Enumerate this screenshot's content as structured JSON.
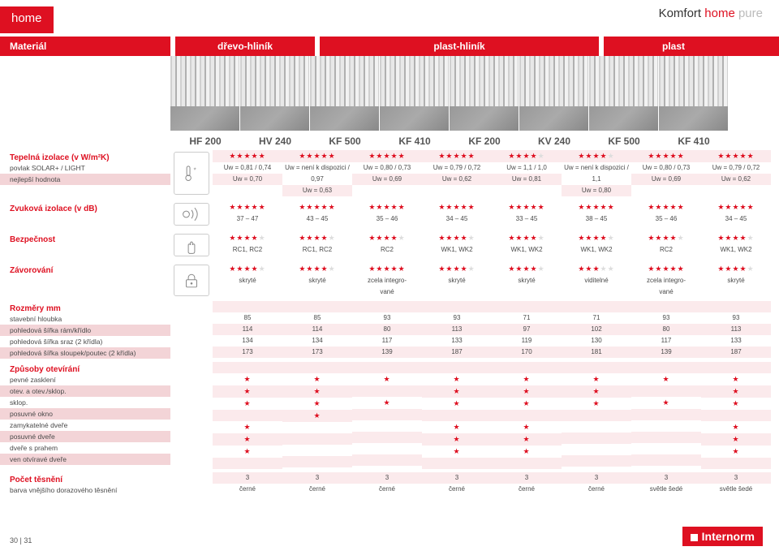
{
  "colors": {
    "brand_red": "#de1021",
    "grey": "#888888",
    "star_off": "#dddddd"
  },
  "header": {
    "tab": "home",
    "brand_prefix": "Komfort ",
    "brand_mid": "home ",
    "brand_suffix": "pure"
  },
  "material_row": {
    "label": "Materiál",
    "groups": [
      "dřevo-hliník",
      "plast-hliník",
      "plast"
    ]
  },
  "models": [
    "HF 200",
    "HV 240",
    "KF 500",
    "KF 410",
    "KF 200",
    "KV 240",
    "KF 500",
    "KF 410"
  ],
  "thermal": {
    "title": "Tepelná izolace (v W/m²K)",
    "rows": [
      {
        "label": "povlak SOLAR+ / LIGHT",
        "vals": [
          "Uw = 0,81 / 0,74",
          "Uw = není k dispozici / 0,97",
          "Uw = 0,80 / 0,73",
          "Uw = 0,79 / 0,72",
          "Uw = 1,1 / 1,0",
          "Uw = není k dispozici / 1,1",
          "Uw = 0,80 / 0,73",
          "Uw = 0,79 / 0,72"
        ]
      },
      {
        "label": "nejlepší hodnota",
        "vals": [
          "Uw = 0,70",
          "Uw = 0,63",
          "Uw = 0,69",
          "Uw = 0,62",
          "Uw = 0,81",
          "Uw = 0,80",
          "Uw = 0,69",
          "Uw = 0,62"
        ]
      }
    ],
    "stars": [
      5,
      5,
      5,
      5,
      4,
      4,
      5,
      5
    ],
    "icon": "thermometer"
  },
  "sound": {
    "title": "Zvuková izolace (v dB)",
    "stars": [
      5,
      5,
      5,
      5,
      5,
      5,
      5,
      5
    ],
    "vals": [
      "37 – 47",
      "43 – 45",
      "35 – 46",
      "34 – 45",
      "33 – 45",
      "38 – 45",
      "35 – 46",
      "34 – 45"
    ],
    "icon": "sound"
  },
  "security": {
    "title": "Bezpečnost",
    "stars": [
      4,
      4,
      4,
      4,
      4,
      4,
      4,
      4
    ],
    "vals": [
      "RC1, RC2",
      "RC1, RC2",
      "RC2",
      "WK1, WK2",
      "WK1, WK2",
      "WK1, WK2",
      "RC2",
      "WK1, WK2"
    ],
    "icon": "hand"
  },
  "locking": {
    "title": "Závorování",
    "stars": [
      4,
      4,
      5,
      4,
      4,
      3,
      5,
      4
    ],
    "vals": [
      "skryté",
      "skryté",
      "zcela integro-\nvané",
      "skryté",
      "skryté",
      "viditelné",
      "zcela integro-\nvané",
      "skryté"
    ],
    "icon": "lock"
  },
  "dimensions": {
    "title": "Rozměry mm",
    "rows": [
      {
        "label": "stavební hloubka",
        "vals": [
          "85",
          "85",
          "93",
          "93",
          "71",
          "71",
          "93",
          "93"
        ]
      },
      {
        "label": "pohledová šířka rám/křídlo",
        "vals": [
          "114",
          "114",
          "80",
          "113",
          "97",
          "102",
          "80",
          "113"
        ]
      },
      {
        "label": "pohledová šířka sraz (2 křídla)",
        "vals": [
          "134",
          "134",
          "117",
          "133",
          "119",
          "130",
          "117",
          "133"
        ]
      },
      {
        "label": "pohledová šířka sloupek/poutec (2 křídla)",
        "vals": [
          "173",
          "173",
          "139",
          "187",
          "170",
          "181",
          "139",
          "187"
        ]
      }
    ]
  },
  "opening": {
    "title": "Způsoby otevírání",
    "rows": [
      {
        "label": "pevné zasklení",
        "vals": [
          1,
          1,
          1,
          1,
          1,
          1,
          1,
          1
        ]
      },
      {
        "label": "otev. a otev./sklop.",
        "vals": [
          1,
          1,
          0,
          1,
          1,
          1,
          0,
          1
        ]
      },
      {
        "label": "sklop.",
        "vals": [
          1,
          1,
          1,
          1,
          1,
          1,
          1,
          1
        ]
      },
      {
        "label": "posuvné okno",
        "vals": [
          0,
          1,
          0,
          0,
          0,
          0,
          0,
          0
        ]
      },
      {
        "label": "zamykatelné dveře",
        "vals": [
          1,
          0,
          0,
          1,
          1,
          0,
          0,
          1
        ]
      },
      {
        "label": "posuvné dveře",
        "vals": [
          1,
          0,
          0,
          1,
          1,
          0,
          0,
          1
        ]
      },
      {
        "label": "dveře s prahem",
        "vals": [
          1,
          0,
          0,
          1,
          1,
          0,
          0,
          1
        ]
      },
      {
        "label": "ven otvíravé dveře",
        "vals": [
          0,
          0,
          0,
          0,
          0,
          0,
          0,
          0
        ]
      }
    ]
  },
  "seals": {
    "title": "Počet těsnění",
    "rows": [
      {
        "label": "",
        "vals": [
          "3",
          "3",
          "3",
          "3",
          "3",
          "3",
          "3",
          "3"
        ]
      },
      {
        "label": "barva vnějšího dorazového těsnění",
        "vals": [
          "černé",
          "černé",
          "černé",
          "černé",
          "černé",
          "černé",
          "světle šedé",
          "světle šedé"
        ]
      }
    ]
  },
  "footer": {
    "page": "30 | 31",
    "logo": "Internorm"
  }
}
